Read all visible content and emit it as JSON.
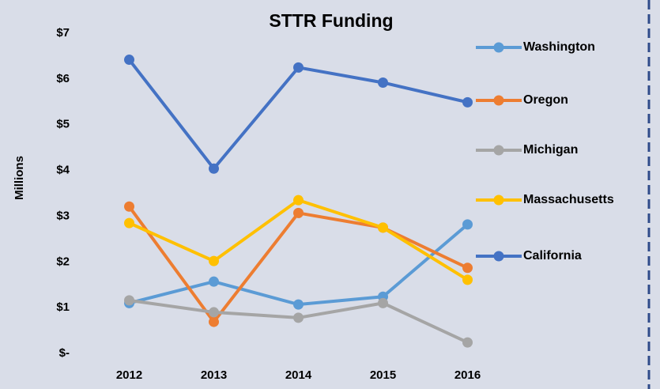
{
  "chart_data": {
    "type": "line",
    "title": "STTR Funding",
    "y_label": "Millions",
    "categories": [
      "2012",
      "2013",
      "2014",
      "2015",
      "2016"
    ],
    "series": [
      {
        "name": "Washington",
        "color": "#5b9bd5",
        "values": [
          1.1,
          1.57,
          1.07,
          1.24,
          2.82
        ]
      },
      {
        "name": "Oregon",
        "color": "#ed7d31",
        "values": [
          3.21,
          0.69,
          3.07,
          2.75,
          1.87
        ]
      },
      {
        "name": "Michigan",
        "color": "#a5a5a5",
        "values": [
          1.16,
          0.9,
          0.78,
          1.1,
          0.24
        ]
      },
      {
        "name": "Massachusetts",
        "color": "#ffc000",
        "values": [
          2.85,
          2.02,
          3.35,
          2.75,
          1.61
        ]
      },
      {
        "name": "California",
        "color": "#4472c4",
        "values": [
          6.42,
          4.04,
          6.25,
          5.92,
          5.49
        ]
      }
    ],
    "ylim": [
      0,
      7
    ],
    "yticks": [
      {
        "value": 0,
        "label": "$-"
      },
      {
        "value": 1,
        "label": "$1"
      },
      {
        "value": 2,
        "label": "$2"
      },
      {
        "value": 3,
        "label": "$3"
      },
      {
        "value": 4,
        "label": "$4"
      },
      {
        "value": 5,
        "label": "$5"
      },
      {
        "value": 6,
        "label": "$6"
      },
      {
        "value": 7,
        "label": "$7"
      }
    ],
    "grid": false,
    "legend": "right"
  }
}
